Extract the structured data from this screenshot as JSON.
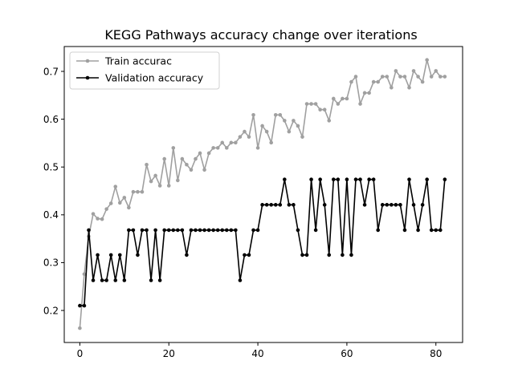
{
  "chart_data": {
    "type": "line",
    "title": "KEGG Pathways accuracy change over iterations",
    "xlabel": "",
    "ylabel": "",
    "xlim": [
      -3.5,
      86.0
    ],
    "ylim": [
      0.133,
      0.752
    ],
    "xticks": [
      0,
      20,
      40,
      60,
      80
    ],
    "yticks": [
      0.2,
      0.3,
      0.4,
      0.5,
      0.6,
      0.7
    ],
    "xtick_labels": [
      "0",
      "20",
      "40",
      "60",
      "80"
    ],
    "ytick_labels": [
      "0.2",
      "0.3",
      "0.4",
      "0.5",
      "0.6",
      "0.7"
    ],
    "grid": false,
    "legend_position": "upper-left",
    "series": [
      {
        "name": "Train accurac",
        "color": "#a0a0a0",
        "x": [
          0,
          1,
          2,
          3,
          4,
          5,
          6,
          7,
          8,
          9,
          10,
          11,
          12,
          13,
          14,
          15,
          16,
          17,
          18,
          19,
          20,
          21,
          22,
          23,
          24,
          25,
          26,
          27,
          28,
          29,
          30,
          31,
          32,
          33,
          34,
          35,
          36,
          37,
          38,
          39,
          40,
          41,
          42,
          43,
          44,
          45,
          46,
          47,
          48,
          49,
          50,
          51,
          52,
          53,
          54,
          55,
          56,
          57,
          58,
          59,
          60,
          61,
          62,
          63,
          64,
          65,
          66,
          67,
          68,
          69,
          70,
          71,
          72,
          73,
          74,
          75,
          76,
          77,
          78,
          79,
          80,
          81,
          82
        ],
        "values": [
          0.163,
          0.276,
          0.355,
          0.402,
          0.392,
          0.391,
          0.412,
          0.424,
          0.459,
          0.425,
          0.436,
          0.415,
          0.448,
          0.448,
          0.448,
          0.505,
          0.47,
          0.482,
          0.461,
          0.517,
          0.461,
          0.54,
          0.472,
          0.517,
          0.505,
          0.494,
          0.517,
          0.529,
          0.494,
          0.529,
          0.54,
          0.54,
          0.551,
          0.54,
          0.551,
          0.551,
          0.563,
          0.574,
          0.563,
          0.609,
          0.54,
          0.586,
          0.574,
          0.551,
          0.609,
          0.609,
          0.597,
          0.574,
          0.597,
          0.586,
          0.563,
          0.632,
          0.632,
          0.632,
          0.62,
          0.62,
          0.597,
          0.643,
          0.632,
          0.643,
          0.643,
          0.678,
          0.689,
          0.632,
          0.655,
          0.655,
          0.678,
          0.678,
          0.689,
          0.689,
          0.666,
          0.701,
          0.689,
          0.689,
          0.666,
          0.701,
          0.689,
          0.678,
          0.724,
          0.689,
          0.701,
          0.689,
          0.689
        ]
      },
      {
        "name": "Validation accuracy",
        "color": "#000000",
        "x": [
          0,
          1,
          2,
          3,
          4,
          5,
          6,
          7,
          8,
          9,
          10,
          11,
          12,
          13,
          14,
          15,
          16,
          17,
          18,
          19,
          20,
          21,
          22,
          23,
          24,
          25,
          26,
          27,
          28,
          29,
          30,
          31,
          32,
          33,
          34,
          35,
          36,
          37,
          38,
          39,
          40,
          41,
          42,
          43,
          44,
          45,
          46,
          47,
          48,
          49,
          50,
          51,
          52,
          53,
          54,
          55,
          56,
          57,
          58,
          59,
          60,
          61,
          62,
          63,
          64,
          65,
          66,
          67,
          68,
          69,
          70,
          71,
          72,
          73,
          74,
          75,
          76,
          77,
          78,
          79,
          80,
          81,
          82
        ],
        "values": [
          0.21,
          0.21,
          0.368,
          0.263,
          0.316,
          0.263,
          0.263,
          0.316,
          0.263,
          0.316,
          0.263,
          0.368,
          0.368,
          0.316,
          0.368,
          0.368,
          0.263,
          0.368,
          0.263,
          0.368,
          0.368,
          0.368,
          0.368,
          0.368,
          0.316,
          0.368,
          0.368,
          0.368,
          0.368,
          0.368,
          0.368,
          0.368,
          0.368,
          0.368,
          0.368,
          0.368,
          0.263,
          0.316,
          0.316,
          0.368,
          0.368,
          0.421,
          0.421,
          0.421,
          0.421,
          0.421,
          0.474,
          0.421,
          0.421,
          0.368,
          0.316,
          0.316,
          0.474,
          0.368,
          0.474,
          0.421,
          0.316,
          0.474,
          0.474,
          0.316,
          0.474,
          0.316,
          0.474,
          0.474,
          0.421,
          0.474,
          0.474,
          0.368,
          0.421,
          0.421,
          0.421,
          0.421,
          0.421,
          0.368,
          0.474,
          0.421,
          0.368,
          0.421,
          0.474,
          0.368,
          0.368,
          0.368,
          0.474
        ]
      }
    ]
  }
}
